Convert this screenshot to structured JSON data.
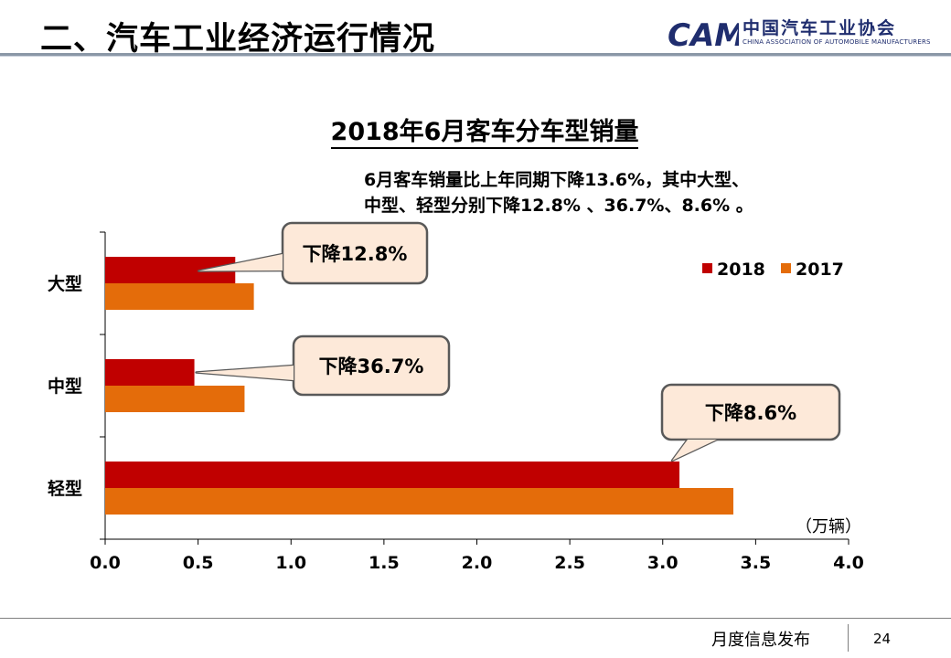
{
  "header": {
    "title": "二、汽车工业经济运行情况",
    "logo_cn": "中国汽车工业协会",
    "logo_en": "CHINA ASSOCIATION OF AUTOMOBILE MANUFACTURERS",
    "logo_mark": "CAM"
  },
  "summary": {
    "line1": "6月客车销量比上年同期下降13.6%，其中大型、",
    "line2": "中型、轻型分别下降12.8% 、36.7%、8.6% 。"
  },
  "chart_data": {
    "type": "bar",
    "orientation": "horizontal",
    "title": "2018年6月客车分车型销量",
    "categories": [
      "大型",
      "中型",
      "轻型"
    ],
    "series": [
      {
        "name": "2018",
        "values": [
          0.7,
          0.48,
          3.09
        ],
        "color": "#c00000"
      },
      {
        "name": "2017",
        "values": [
          0.8,
          0.75,
          3.38
        ],
        "color": "#e46c0a"
      }
    ],
    "xlim": [
      0.0,
      4.0
    ],
    "xticks": [
      "0.0",
      "0.5",
      "1.0",
      "1.5",
      "2.0",
      "2.5",
      "3.0",
      "3.5",
      "4.0"
    ],
    "xlabel": "（万辆）",
    "legend_position": "top-right",
    "callouts": [
      "下降12.8%",
      "下降36.7%",
      "下降8.6%"
    ]
  },
  "colors": {
    "accent": "#c00000",
    "secondary": "#e46c0a",
    "callout_fill": "#fde9d9"
  },
  "footer": {
    "text": "月度信息发布",
    "page": "24"
  }
}
